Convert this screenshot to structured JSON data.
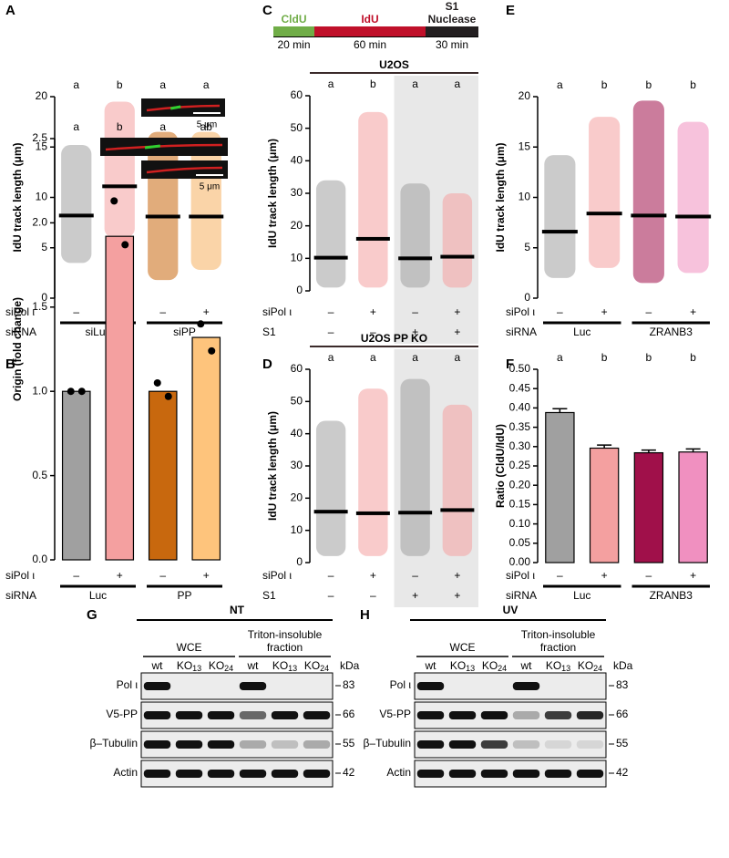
{
  "chart_data": [
    {
      "type": "strip",
      "label": "A",
      "ylabel": "IdU track length (μm)",
      "ylim": [
        0,
        20
      ],
      "yticks": [
        0,
        5,
        10,
        15,
        20
      ],
      "categories": [
        null,
        null,
        null,
        null
      ],
      "values": [
        8.2,
        11.1,
        8.1,
        8.1
      ],
      "min": [
        3.5,
        6,
        1.8,
        2.8
      ],
      "max": [
        15.2,
        19.5,
        16.5,
        16.5
      ],
      "colors": [
        "#a0a0a0",
        "#f4a0a0",
        "#c8680e",
        "#f5b060"
      ],
      "letters": [
        "a",
        "b",
        "a",
        "a"
      ],
      "inset_scale": "5 μm",
      "rows": [
        {
          "label": "siPol ι",
          "signs": [
            "–",
            "+",
            "–",
            "+"
          ]
        },
        {
          "label": "siRNA",
          "groups": [
            "siLuc",
            "siPP"
          ]
        }
      ]
    },
    {
      "type": "bar",
      "label": "B",
      "ylabel": "Origin (fold change)",
      "ylim": [
        0,
        2.5
      ],
      "yticks": [
        {
          "value": 0,
          "label": "0.0"
        },
        {
          "value": 0.5,
          "label": "0.5"
        },
        {
          "value": 1,
          "label": "1.0"
        },
        {
          "value": 1.5,
          "label": "1.5"
        },
        {
          "value": 2,
          "label": "2.0"
        },
        {
          "value": 2.5,
          "label": "2.5"
        }
      ],
      "categories": [
        null,
        null,
        null,
        null
      ],
      "values": [
        1.0,
        1.92,
        1.0,
        1.32
      ],
      "points": [
        [
          1.0,
          1.0
        ],
        [
          2.13,
          1.87
        ],
        [
          1.05,
          0.97
        ],
        [
          1.4,
          1.24
        ]
      ],
      "colors": [
        "#a0a0a0",
        "#f4a0a0",
        "#c8680e",
        "#fec47c"
      ],
      "letters": [
        "a",
        "b",
        "a",
        "ab"
      ],
      "inset_scale": "5 μm",
      "rows": [
        {
          "label": "siPol ι",
          "signs": [
            "–",
            "+",
            "–",
            "+"
          ]
        },
        {
          "label": "siRNA",
          "groups": [
            "Luc",
            "PP"
          ]
        }
      ]
    },
    {
      "type": "strip",
      "label": "C",
      "title": "U2OS",
      "ylabel": "IdU track length (μm)",
      "ylim": [
        0,
        60
      ],
      "yticks": [
        0,
        10,
        20,
        30,
        40,
        50,
        60
      ],
      "categories": [
        null,
        null,
        null,
        null
      ],
      "values": [
        10.2,
        16,
        10,
        10.5
      ],
      "min": [
        1,
        1,
        1,
        1
      ],
      "max": [
        34,
        55,
        33,
        30
      ],
      "colors": [
        "#a0a0a0",
        "#f4a0a0",
        "#a0a0a0",
        "#f4a0a0"
      ],
      "letters": [
        "a",
        "b",
        "a",
        "a"
      ],
      "shaded_categories": [
        2,
        3
      ],
      "timeline": [
        {
          "label": [
            "CldU"
          ],
          "duration": "20 min",
          "color": "#70ad47"
        },
        {
          "label": [
            "IdU"
          ],
          "duration": "60 min",
          "color": "#c0102a"
        },
        {
          "label": [
            "S1",
            "Nuclease"
          ],
          "duration": "30 min",
          "color": "#231f20"
        }
      ],
      "rows": [
        {
          "label": "siPol ι",
          "signs": [
            "–",
            "+",
            "–",
            "+"
          ]
        },
        {
          "label": "S1",
          "signs": [
            "–",
            "–",
            "+",
            "+"
          ]
        }
      ]
    },
    {
      "type": "strip",
      "label": "D",
      "title": "U2OS PP KO",
      "ylabel": "IdU track length (μm)",
      "ylim": [
        0,
        60
      ],
      "yticks": [
        0,
        10,
        20,
        30,
        40,
        50,
        60
      ],
      "categories": [
        null,
        null,
        null,
        null
      ],
      "values": [
        15.8,
        15.3,
        15.5,
        16.3
      ],
      "min": [
        2,
        2,
        2,
        2
      ],
      "max": [
        44,
        54,
        57,
        49
      ],
      "colors": [
        "#a0a0a0",
        "#f4a0a0",
        "#a0a0a0",
        "#f4a0a0"
      ],
      "letters": [
        "a",
        "a",
        "a",
        "a"
      ],
      "shaded_categories": [
        2,
        3
      ],
      "rows": [
        {
          "label": "siPol ι",
          "signs": [
            "–",
            "+",
            "–",
            "+"
          ]
        },
        {
          "label": "S1",
          "signs": [
            "–",
            "–",
            "+",
            "+"
          ]
        }
      ]
    },
    {
      "type": "strip",
      "label": "E",
      "ylabel": "IdU track length (μm)",
      "ylim": [
        0,
        20
      ],
      "yticks": [
        0,
        5,
        10,
        15,
        20
      ],
      "categories": [
        null,
        null,
        null,
        null
      ],
      "values": [
        6.6,
        8.4,
        8.2,
        8.1
      ],
      "min": [
        2,
        3,
        1.5,
        2.5
      ],
      "max": [
        14.2,
        18,
        19.6,
        17.5
      ],
      "colors": [
        "#a0a0a0",
        "#f4a0a0",
        "#a0104a",
        "#f090c0"
      ],
      "letters": [
        "a",
        "b",
        "b",
        "b"
      ],
      "rows": [
        {
          "label": "siPol ι",
          "signs": [
            "–",
            "+",
            "–",
            "+"
          ]
        },
        {
          "label": "siRNA",
          "groups": [
            "Luc",
            "ZRANB3"
          ]
        }
      ]
    },
    {
      "type": "errorbar",
      "label": "F",
      "ylabel": "Ratio (CldU/IdU)",
      "ylim": [
        0,
        0.5
      ],
      "yticks": [
        {
          "value": 0,
          "label": "0.00"
        },
        {
          "value": 0.05,
          "label": "0.05"
        },
        {
          "value": 0.1,
          "label": "0.10"
        },
        {
          "value": 0.15,
          "label": "0.15"
        },
        {
          "value": 0.2,
          "label": "0.20"
        },
        {
          "value": 0.25,
          "label": "0.25"
        },
        {
          "value": 0.3,
          "label": "0.30"
        },
        {
          "value": 0.35,
          "label": "0.35"
        },
        {
          "value": 0.4,
          "label": "0.40"
        },
        {
          "value": 0.45,
          "label": "0.45"
        },
        {
          "value": 0.5,
          "label": "0.50"
        }
      ],
      "categories": [
        null,
        null,
        null,
        null
      ],
      "values": [
        0.388,
        0.296,
        0.284,
        0.286
      ],
      "errors": [
        0.01,
        0.008,
        0.007,
        0.008
      ],
      "colors": [
        "#a0a0a0",
        "#f4a0a0",
        "#a0104a",
        "#f090c0"
      ],
      "letters": [
        "a",
        "b",
        "b",
        "b"
      ],
      "rows": [
        {
          "label": "siPol ι",
          "signs": [
            "–",
            "+",
            "–",
            "+"
          ]
        },
        {
          "label": "siRNA",
          "groups": [
            "Luc",
            "ZRANB3"
          ]
        }
      ]
    }
  ],
  "blots": [
    {
      "label": "G",
      "title": "NT",
      "fractions": [
        [
          "WCE"
        ],
        [
          "Triton-insoluble",
          "fraction"
        ]
      ],
      "lanes": [
        {
          "main": "wt"
        },
        {
          "main": "KO",
          "sub": "13"
        },
        {
          "main": "KO",
          "sub": "24"
        },
        {
          "main": "wt"
        },
        {
          "main": "KO",
          "sub": "13"
        },
        {
          "main": "KO",
          "sub": "24"
        }
      ],
      "rows": [
        "Pol ι",
        "V5-PP",
        "β–Tubulin",
        "Actin"
      ],
      "unit": "kDa",
      "markers": [
        "83",
        "66",
        "55",
        "42"
      ]
    },
    {
      "label": "H",
      "title": "UV",
      "fractions": [
        [
          "WCE"
        ],
        [
          "Triton-insoluble",
          "fraction"
        ]
      ],
      "lanes": [
        {
          "main": "wt"
        },
        {
          "main": "KO",
          "sub": "13"
        },
        {
          "main": "KO",
          "sub": "24"
        },
        {
          "main": "wt"
        },
        {
          "main": "KO",
          "sub": "13"
        },
        {
          "main": "KO",
          "sub": "24"
        }
      ],
      "rows": [
        "Pol ι",
        "V5-PP",
        "β–Tubulin",
        "Actin"
      ],
      "unit": "kDa",
      "markers": [
        "83",
        "66",
        "55",
        "42"
      ]
    }
  ]
}
